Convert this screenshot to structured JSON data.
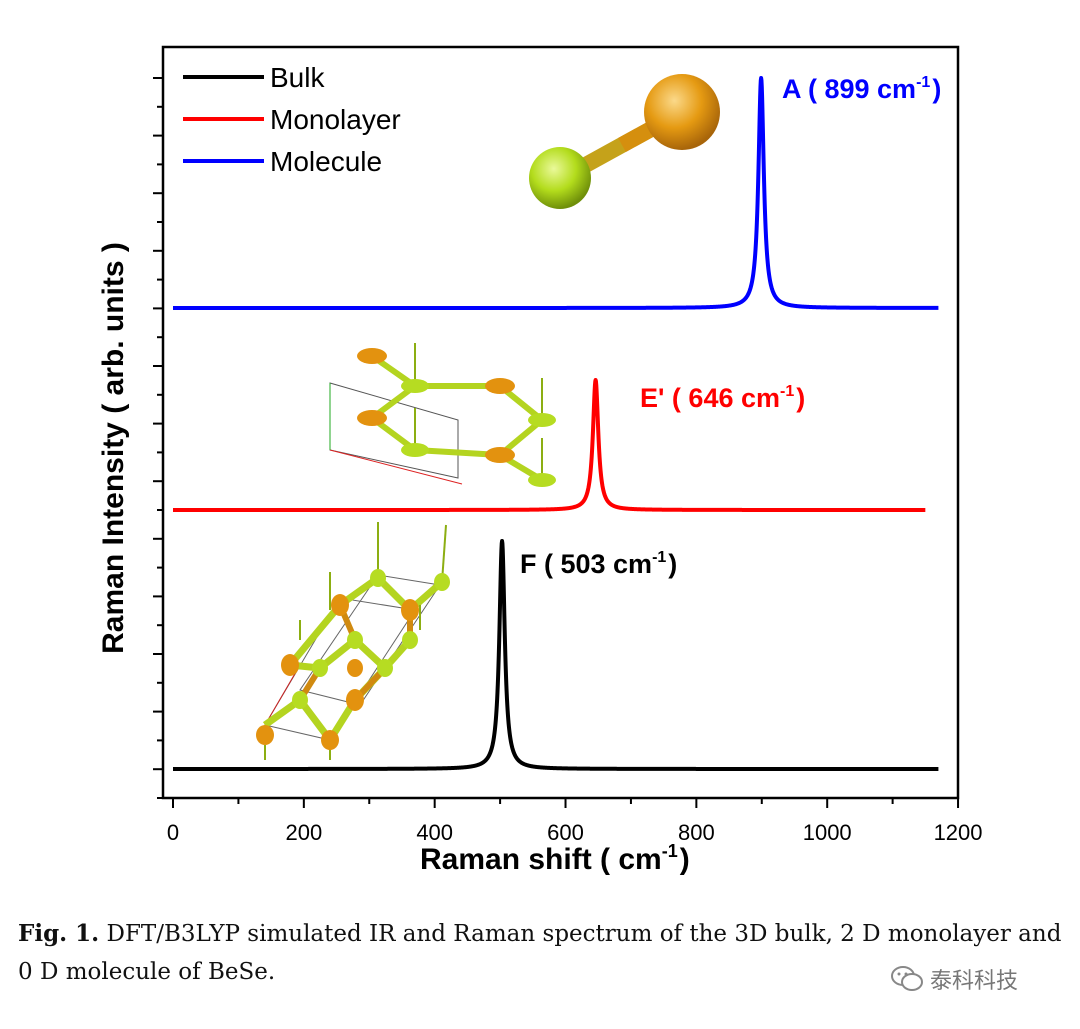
{
  "chart_data": {
    "type": "line",
    "xlabel": "Raman shift ( cm",
    "xlabel_sup": "-1",
    "xlabel_end": ")",
    "ylabel": "Raman Intensity ( arb. units )",
    "xlim": [
      -10,
      1200
    ],
    "x_ticks": [
      "0",
      "200",
      "400",
      "600",
      "800",
      "1000",
      "1200"
    ],
    "grid": false,
    "legend_position": "top-left",
    "series": [
      {
        "name": "Bulk",
        "color": "#000000",
        "peak_x": 503,
        "x_end": 1170
      },
      {
        "name": "Monolayer",
        "color": "#ff0000",
        "peak_x": 646,
        "x_end": 1150
      },
      {
        "name": "Molecule",
        "color": "#0000ff",
        "peak_x": 899,
        "x_end": 1170
      }
    ],
    "annotations": [
      {
        "pre": "F ( 503 cm",
        "sup": "-1",
        "post": ")",
        "color": "#000000"
      },
      {
        "pre": "E' ( 646 cm",
        "sup": "-1",
        "post": ")",
        "color": "#ff0000"
      },
      {
        "pre": "A ( 899 cm",
        "sup": "-1",
        "post": ")",
        "color": "#0000ff"
      }
    ],
    "atom_colors": {
      "se": "#e08e0b",
      "be": "#a6d416"
    }
  },
  "caption": {
    "fig_label": "Fig. 1.",
    "text": "DFT/B3LYP simulated IR and Raman spectrum of the 3D bulk, 2 D monolayer and 0 D molecule of BeSe."
  },
  "watermark": {
    "icon": "wechat-icon",
    "text": "泰科科技"
  }
}
